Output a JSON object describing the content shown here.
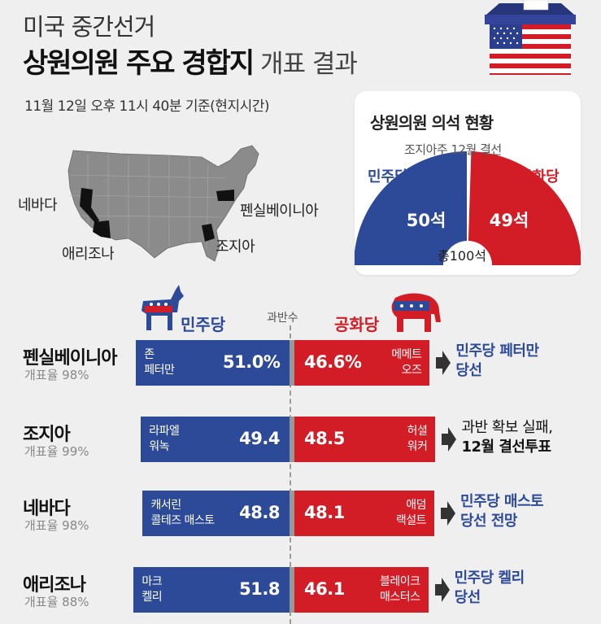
{
  "header": {
    "line1": "미국 중간선거",
    "line2_bold": "상원의원 주요 경합지",
    "line2_light": "개표 결과",
    "asof": "11월 12일 오후 11시 40분 기준(현지시간)"
  },
  "map": {
    "labels": [
      "네바다",
      "애리조나",
      "펜실베이니아",
      "조지아"
    ]
  },
  "seats": {
    "title": "상원의원 의석 현황",
    "note": "조지아주 12월 결선",
    "dem_label": "민주당",
    "rep_label": "공화당",
    "dem_seats": "50석",
    "rep_seats": "49석",
    "total": "총100석",
    "colors": {
      "dem": "#2c4a98",
      "rep": "#d21d26"
    }
  },
  "legend": {
    "dem": "민주당",
    "rep": "공화당",
    "majority": "과반수"
  },
  "chart_data": {
    "type": "bar",
    "categories": [
      "펜실베이니아",
      "조지아",
      "네바다",
      "애리조나"
    ],
    "series": [
      {
        "name": "민주당",
        "values": [
          51.0,
          49.4,
          48.8,
          51.8
        ]
      },
      {
        "name": "공화당",
        "values": [
          46.6,
          48.5,
          48.1,
          46.1
        ]
      }
    ],
    "pct_labels": {
      "dem": [
        "51.0%",
        "49.4",
        "48.8",
        "51.8"
      ],
      "rep": [
        "46.6%",
        "48.5",
        "48.1",
        "46.1"
      ]
    },
    "counted": [
      "개표율 98%",
      "개표율 99%",
      "개표율 98%",
      "개표율 88%"
    ],
    "dem_candidates": [
      [
        "존",
        "페터만"
      ],
      [
        "라파엘",
        "워녹"
      ],
      [
        "캐서린",
        "콜테즈 매스토"
      ],
      [
        "마크",
        "켈리"
      ]
    ],
    "rep_candidates": [
      [
        "메메트",
        "오즈"
      ],
      [
        "허셜",
        "워커"
      ],
      [
        "애덤",
        "랙설트"
      ],
      [
        "블레이크",
        "매스터스"
      ]
    ],
    "outcomes": [
      {
        "lines": [
          "민주당 페터만",
          "당선"
        ],
        "style": "blue"
      },
      {
        "lines": [
          "과반 확보 실패,",
          "12월 결선투표"
        ],
        "style": "dark"
      },
      {
        "lines": [
          "민주당 매스토",
          "당선 전망"
        ],
        "style": "blue"
      },
      {
        "lines": [
          "민주당 켈리",
          "당선"
        ],
        "style": "blue"
      }
    ],
    "colors": {
      "dem": "#2c4a98",
      "rep": "#d21d26"
    }
  }
}
